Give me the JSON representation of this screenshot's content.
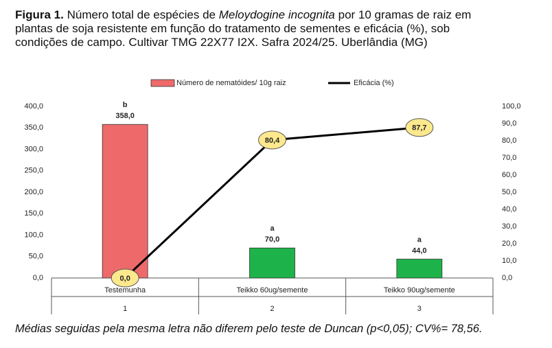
{
  "chart_data": {
    "type": "bar_line",
    "title_label": "Figura 1.",
    "title_before": " Número total de espécies de ",
    "title_species": "Meloydogine incognita",
    "title_after": " por 10 gramas de raiz em plantas de soja resistente em função do tratamento de sementes e eficácia (%), sob condições de campo. Cultivar TMG 22X77 I2X. Safra 2024/25. Uberlândia (MG)",
    "footnote": "Médias seguidas pela mesma letra não diferem pelo teste de Duncan (p<0,05); CV%= 78,56.",
    "categories": [
      "Testemunha",
      "Teikko 60ug/semente",
      "Teikko 90ug/semente"
    ],
    "category_numbers": [
      "1",
      "2",
      "3"
    ],
    "series": [
      {
        "name": "Número de nematóides/ 10g raiz",
        "type": "bar",
        "color": "#ee6a6a",
        "colors": [
          "#ee6a6a",
          "#1db34a",
          "#1db34a"
        ],
        "values": [
          358.0,
          70.0,
          44.0
        ],
        "value_labels": [
          "358,0",
          "70,0",
          "44,0"
        ],
        "letters": [
          "b",
          "a",
          "a"
        ]
      },
      {
        "name": "Eficácia (%)",
        "type": "line",
        "axis": "y2",
        "color": "#000000",
        "marker_color": "#fde98d",
        "values": [
          0.0,
          80.4,
          87.7
        ],
        "value_labels": [
          "0,0",
          "80,4",
          "87,7"
        ]
      }
    ],
    "ylim": [
      0,
      400
    ],
    "yticks": [
      {
        "value": 0,
        "label": "0,0"
      },
      {
        "value": 50,
        "label": "50,0"
      },
      {
        "value": 100,
        "label": "100,0"
      },
      {
        "value": 150,
        "label": "150,0"
      },
      {
        "value": 200,
        "label": "200,0"
      },
      {
        "value": 250,
        "label": "250,0"
      },
      {
        "value": 300,
        "label": "300,0"
      },
      {
        "value": 350,
        "label": "350,0"
      },
      {
        "value": 400,
        "label": "400,0"
      }
    ],
    "y2lim": [
      0,
      100
    ],
    "y2ticks": [
      {
        "value": 0,
        "label": "0,0"
      },
      {
        "value": 10,
        "label": "10,0"
      },
      {
        "value": 20,
        "label": "20,0"
      },
      {
        "value": 30,
        "label": "30,0"
      },
      {
        "value": 40,
        "label": "40,0"
      },
      {
        "value": 50,
        "label": "50,0"
      },
      {
        "value": 60,
        "label": "60,0"
      },
      {
        "value": 70,
        "label": "70,0"
      },
      {
        "value": 80,
        "label": "80,0"
      },
      {
        "value": 90,
        "label": "90,0"
      },
      {
        "value": 100,
        "label": "100,0"
      }
    ],
    "grid": false,
    "legend": "top"
  }
}
